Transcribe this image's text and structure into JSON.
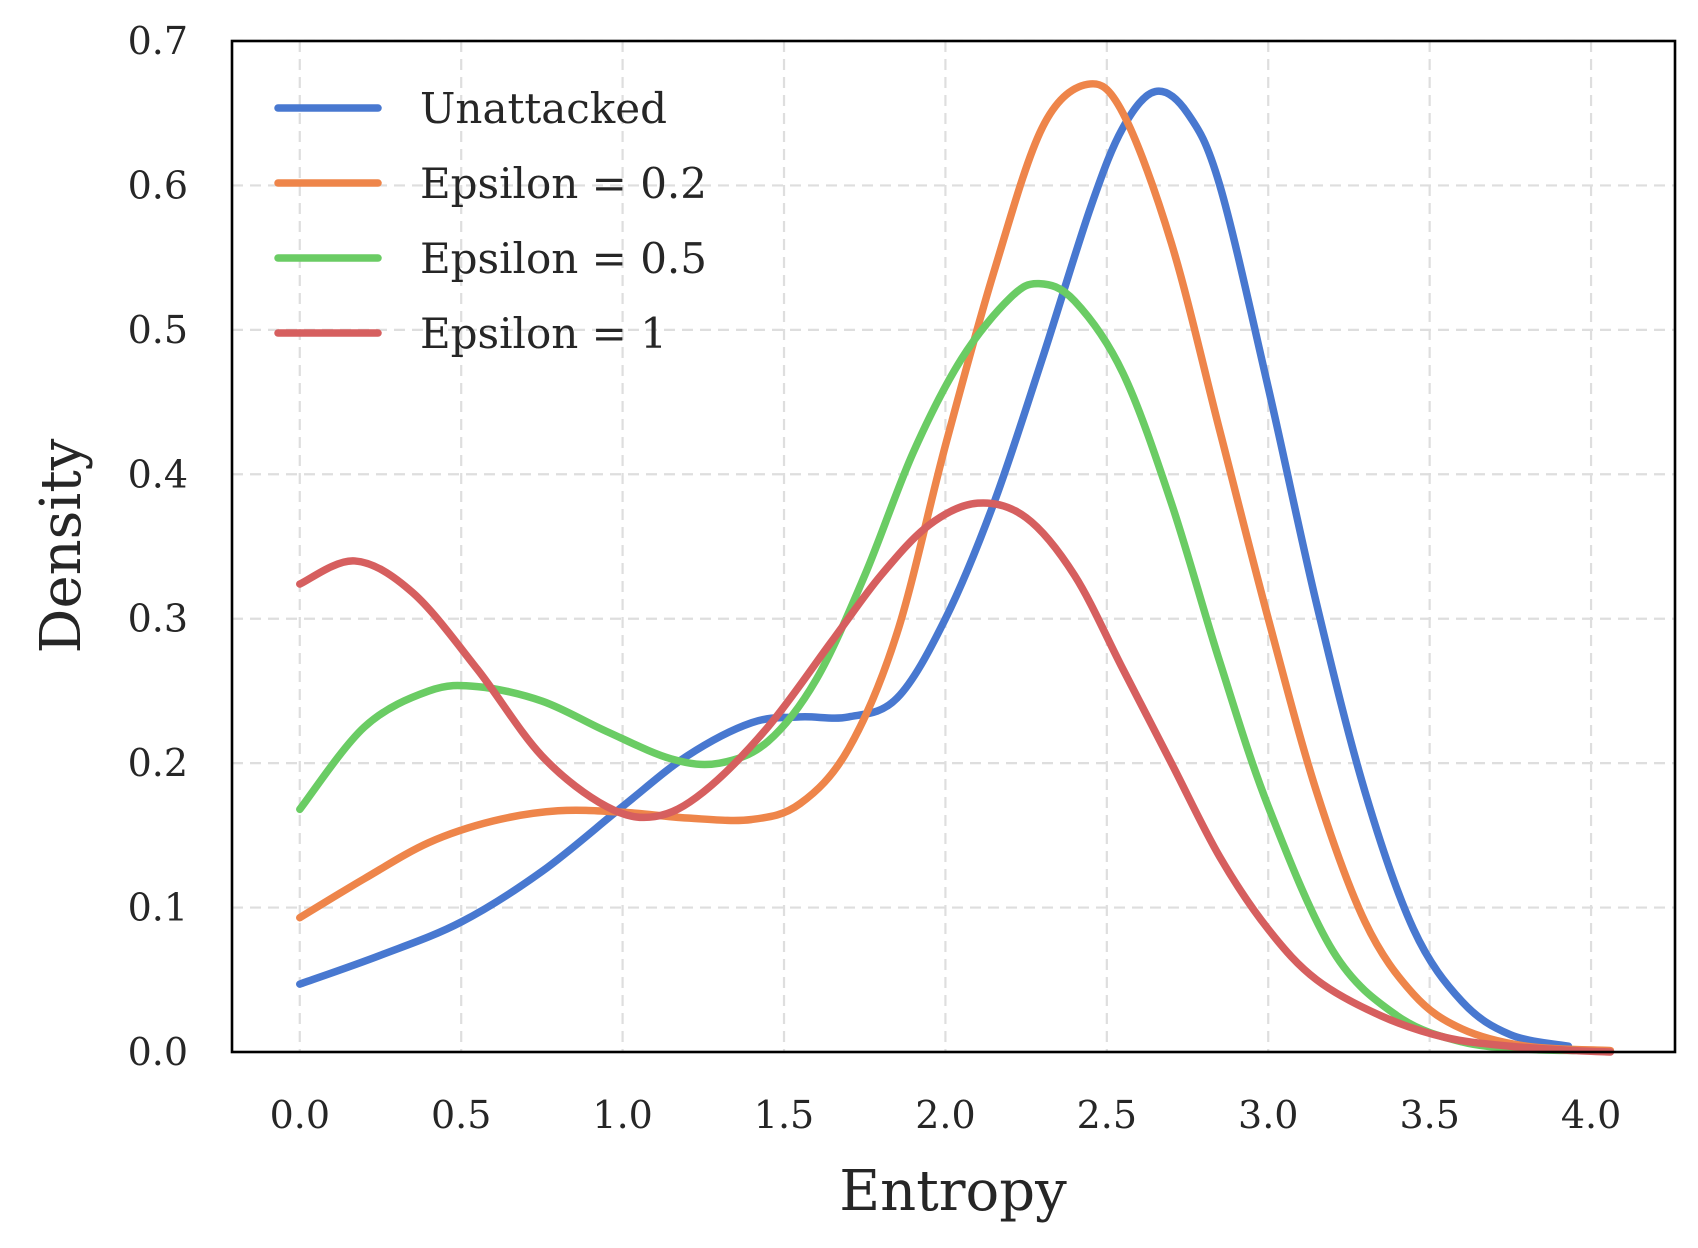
{
  "chart_data": {
    "type": "line",
    "xlabel": "Entropy",
    "ylabel": "Density",
    "xlim": [
      -0.21,
      4.26
    ],
    "ylim": [
      0,
      0.7
    ],
    "xticks": [
      0.0,
      0.5,
      1.0,
      1.5,
      2.0,
      2.5,
      3.0,
      3.5,
      4.0
    ],
    "xtick_labels": [
      "0.0",
      "0.5",
      "1.0",
      "1.5",
      "2.0",
      "2.5",
      "3.0",
      "3.5",
      "4.0"
    ],
    "yticks": [
      0.0,
      0.1,
      0.2,
      0.3,
      0.4,
      0.5,
      0.6,
      0.7
    ],
    "ytick_labels": [
      "0.0",
      "0.1",
      "0.2",
      "0.3",
      "0.4",
      "0.5",
      "0.6",
      "0.7"
    ],
    "grid": true,
    "legend_position": "top-left",
    "series": [
      {
        "name": "Unattacked",
        "color": "#4878d0",
        "x": [
          0.0,
          0.25,
          0.5,
          0.75,
          1.0,
          1.2,
          1.4,
          1.55,
          1.7,
          1.85,
          2.0,
          2.15,
          2.3,
          2.45,
          2.55,
          2.65,
          2.75,
          2.85,
          3.0,
          3.15,
          3.3,
          3.45,
          3.6,
          3.75,
          3.93
        ],
        "y": [
          0.047,
          0.067,
          0.09,
          0.125,
          0.17,
          0.205,
          0.228,
          0.232,
          0.232,
          0.245,
          0.3,
          0.38,
          0.48,
          0.585,
          0.64,
          0.665,
          0.65,
          0.6,
          0.46,
          0.31,
          0.18,
          0.085,
          0.035,
          0.012,
          0.004
        ]
      },
      {
        "name": "Epsilon = 0.2",
        "color": "#ee854a",
        "x": [
          0.0,
          0.2,
          0.4,
          0.6,
          0.8,
          1.0,
          1.2,
          1.4,
          1.55,
          1.7,
          1.85,
          2.0,
          2.15,
          2.3,
          2.44,
          2.55,
          2.7,
          2.85,
          3.0,
          3.15,
          3.3,
          3.45,
          3.6,
          3.8,
          4.06
        ],
        "y": [
          0.093,
          0.12,
          0.145,
          0.16,
          0.167,
          0.166,
          0.162,
          0.161,
          0.172,
          0.21,
          0.29,
          0.42,
          0.54,
          0.64,
          0.67,
          0.65,
          0.56,
          0.43,
          0.3,
          0.18,
          0.09,
          0.04,
          0.016,
          0.004,
          0.001
        ]
      },
      {
        "name": "Epsilon = 0.5",
        "color": "#6acc64",
        "x": [
          0.0,
          0.2,
          0.4,
          0.55,
          0.75,
          0.95,
          1.15,
          1.3,
          1.45,
          1.6,
          1.75,
          1.9,
          2.05,
          2.2,
          2.29,
          2.4,
          2.55,
          2.7,
          2.85,
          3.0,
          3.2,
          3.4,
          3.6,
          3.8,
          3.95
        ],
        "y": [
          0.168,
          0.225,
          0.25,
          0.253,
          0.243,
          0.222,
          0.203,
          0.2,
          0.215,
          0.258,
          0.33,
          0.415,
          0.48,
          0.522,
          0.532,
          0.52,
          0.47,
          0.38,
          0.27,
          0.17,
          0.07,
          0.025,
          0.007,
          0.002,
          0.001
        ]
      },
      {
        "name": "Epsilon = 1",
        "color": "#d65f5f",
        "x": [
          0.0,
          0.17,
          0.35,
          0.55,
          0.75,
          0.95,
          1.1,
          1.25,
          1.45,
          1.65,
          1.8,
          1.95,
          2.1,
          2.25,
          2.4,
          2.55,
          2.7,
          2.85,
          3.0,
          3.15,
          3.35,
          3.55,
          3.75,
          3.95,
          4.06
        ],
        "y": [
          0.324,
          0.34,
          0.318,
          0.265,
          0.205,
          0.17,
          0.163,
          0.18,
          0.225,
          0.285,
          0.33,
          0.365,
          0.38,
          0.37,
          0.33,
          0.265,
          0.2,
          0.135,
          0.085,
          0.05,
          0.025,
          0.01,
          0.004,
          0.001,
          0.0
        ]
      }
    ]
  }
}
